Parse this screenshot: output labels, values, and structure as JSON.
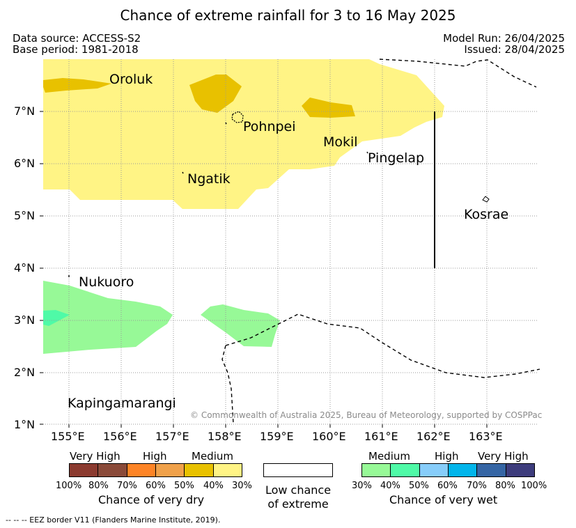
{
  "title": "Chance of extreme rainfall for 3 to 16 May 2025",
  "data_source": "Data source: ACCESS-S2",
  "base_period": "Base period: 1981-2018",
  "model_run": "Model Run: 26/04/2025",
  "issued": "Issued: 28/04/2025",
  "lat_labels": [
    "7°N",
    "6°N",
    "5°N",
    "4°N",
    "3°N",
    "2°N",
    "1°N"
  ],
  "lon_labels": [
    "155°E",
    "156°E",
    "157°E",
    "158°E",
    "159°E",
    "160°E",
    "161°E",
    "162°E",
    "163°E"
  ],
  "places": {
    "oroluk": "Oroluk",
    "pohnpei": "Pohnpei",
    "mokil": "Mokil",
    "pingelap": "Pingelap",
    "ngatik": "Ngatik",
    "kosrae": "Kosrae",
    "nukuoro": "Nukuoro",
    "kapingamarangi": "Kapingamarangi"
  },
  "copyright": "© Commonwealth of Australia 2025, Bureau of Meteorology, supported by COSPPac",
  "legend": {
    "dry": {
      "levels": [
        "Very High",
        "High",
        "Medium"
      ],
      "percents": [
        "100%",
        "80%",
        "70%",
        "60%",
        "50%",
        "40%",
        "30%"
      ],
      "colors": [
        "#8b3a2f",
        "#8a4a39",
        "#fd8426",
        "#f0a14a",
        "#e8c100",
        "#fff485"
      ],
      "caption": "Chance of very dry"
    },
    "low": {
      "caption_line1": "Low chance",
      "caption_line2": "of extreme"
    },
    "wet": {
      "levels": [
        "Medium",
        "High",
        "Very High"
      ],
      "percents": [
        "30%",
        "40%",
        "50%",
        "60%",
        "70%",
        "80%",
        "100%"
      ],
      "colors": [
        "#97f997",
        "#4ffaa7",
        "#87cdfa",
        "#02b5eb",
        "#3565a4",
        "#3d3c7c"
      ],
      "caption": "Chance of very wet"
    }
  },
  "eez_note": "-- -- -- EEZ border V11 (Flanders Marine Institute, 2019)."
}
